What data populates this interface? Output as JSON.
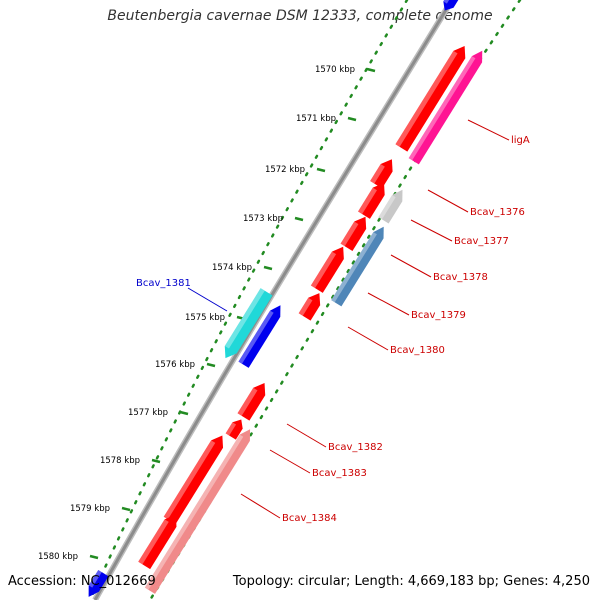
{
  "title": "Beutenbergia cavernae DSM 12333, complete genome",
  "footer": {
    "accession": "Accession: NC_012669",
    "summary": "Topology: circular; Length: 4,669,183 bp; Genes: 4,250"
  },
  "colors": {
    "forward_gene": "#ff0000",
    "reverse_gene": "#0000ee",
    "ligA": "#ff1493",
    "bcav_1377": "#c8c8c8",
    "bcav_1378": "#4f86b8",
    "bcav_1381": "#20d8d8",
    "bcav_1384": "#f08a8a",
    "backbone": "#8c8c8c",
    "ticks": "#228b22",
    "label_forward": "#cc0000",
    "label_reverse": "#0000cc"
  },
  "ruler": {
    "unit": "kbp",
    "marks": [
      "1570 kbp",
      "1571 kbp",
      "1572 kbp",
      "1573 kbp",
      "1574 kbp",
      "1575 kbp",
      "1576 kbp",
      "1577 kbp",
      "1578 kbp",
      "1579 kbp",
      "1580 kbp"
    ]
  },
  "gene_labels": [
    {
      "name": "ligA",
      "strand": "forward"
    },
    {
      "name": "Bcav_1376",
      "strand": "forward"
    },
    {
      "name": "Bcav_1377",
      "strand": "forward"
    },
    {
      "name": "Bcav_1378",
      "strand": "forward"
    },
    {
      "name": "Bcav_1379",
      "strand": "forward"
    },
    {
      "name": "Bcav_1380",
      "strand": "forward"
    },
    {
      "name": "Bcav_1381",
      "strand": "reverse"
    },
    {
      "name": "Bcav_1382",
      "strand": "forward"
    },
    {
      "name": "Bcav_1383",
      "strand": "forward"
    },
    {
      "name": "Bcav_1384",
      "strand": "forward"
    }
  ]
}
